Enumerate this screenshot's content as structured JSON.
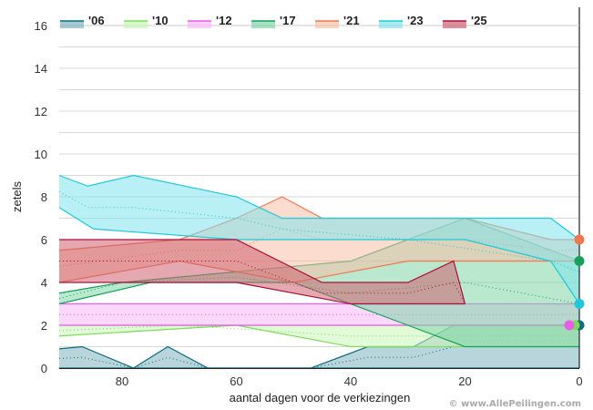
{
  "chart_data": {
    "type": "area",
    "title": "",
    "xlabel": "aantal dagen voor de verkiezingen",
    "ylabel": "zetels",
    "xlim": [
      91,
      0
    ],
    "ylim": [
      0,
      16.5
    ],
    "x_ticks": [
      80,
      60,
      40,
      20,
      0
    ],
    "y_ticks": [
      0,
      2,
      4,
      6,
      8,
      10,
      12,
      14,
      16
    ],
    "grid": true,
    "legend_position": "top",
    "watermark": "© www.AllePeilingen.com",
    "series": [
      {
        "name": "'06",
        "color": "#0d6b7d",
        "fill": "#7fb3c0",
        "low": [
          [
            91,
            0
          ],
          [
            0,
            0
          ]
        ],
        "high": [
          [
            91,
            0.9
          ],
          [
            87,
            1
          ],
          [
            78,
            0
          ],
          [
            72,
            1
          ],
          [
            65,
            0
          ],
          [
            47,
            0
          ],
          [
            37,
            1
          ],
          [
            29,
            1
          ],
          [
            22,
            2
          ],
          [
            0,
            2
          ]
        ],
        "end": 2
      },
      {
        "name": "'10",
        "color": "#7ddc5a",
        "fill": "#c8f5b8",
        "low": [
          [
            91,
            1.5
          ],
          [
            60,
            2
          ],
          [
            40,
            1
          ],
          [
            20,
            1
          ],
          [
            0,
            1
          ]
        ],
        "high": [
          [
            91,
            2
          ],
          [
            70,
            2
          ],
          [
            40,
            2
          ],
          [
            20,
            2
          ],
          [
            0,
            2
          ]
        ],
        "end": 2
      },
      {
        "name": "'12",
        "color": "#e85ee8",
        "fill": "#f8b8f8",
        "low": [
          [
            91,
            2
          ],
          [
            30,
            2
          ],
          [
            20,
            2
          ],
          [
            10,
            2
          ],
          [
            0,
            2
          ]
        ],
        "high": [
          [
            91,
            3
          ],
          [
            40,
            3
          ],
          [
            20,
            3
          ],
          [
            0,
            3
          ]
        ],
        "end": 2
      },
      {
        "name": "'17",
        "color": "#16a05a",
        "fill": "#7fd6a8",
        "low": [
          [
            91,
            3
          ],
          [
            75,
            4
          ],
          [
            50,
            4
          ],
          [
            30,
            2
          ],
          [
            20,
            1
          ],
          [
            0,
            1
          ]
        ],
        "high": [
          [
            91,
            3.5
          ],
          [
            80,
            4
          ],
          [
            60,
            4.5
          ],
          [
            40,
            5
          ],
          [
            20,
            7
          ],
          [
            10,
            6
          ],
          [
            0,
            5
          ]
        ],
        "end": 5
      },
      {
        "name": "'21",
        "color": "#f07850",
        "fill": "#f8c0a8",
        "low": [
          [
            91,
            4
          ],
          [
            70,
            5
          ],
          [
            50,
            4
          ],
          [
            30,
            5
          ],
          [
            10,
            5
          ],
          [
            0,
            5
          ]
        ],
        "high": [
          [
            91,
            5.5
          ],
          [
            70,
            6
          ],
          [
            60,
            7
          ],
          [
            52,
            8
          ],
          [
            45,
            7
          ],
          [
            20,
            7
          ],
          [
            5,
            6
          ],
          [
            0,
            6
          ]
        ],
        "end": 6
      },
      {
        "name": "'23",
        "color": "#20c8d8",
        "fill": "#80e4ec",
        "low": [
          [
            91,
            7.5
          ],
          [
            85,
            6.5
          ],
          [
            60,
            6
          ],
          [
            40,
            6
          ],
          [
            20,
            6
          ],
          [
            5,
            5
          ],
          [
            0,
            3
          ]
        ],
        "high": [
          [
            91,
            9
          ],
          [
            86,
            8.5
          ],
          [
            78,
            9
          ],
          [
            60,
            8
          ],
          [
            52,
            7
          ],
          [
            30,
            7
          ],
          [
            5,
            7
          ],
          [
            0,
            6
          ]
        ],
        "end": 3
      },
      {
        "name": "'25",
        "color": "#a8103c",
        "fill": "#d06070",
        "low": [
          [
            91,
            4
          ],
          [
            60,
            4
          ],
          [
            40,
            3
          ],
          [
            20,
            3
          ]
        ],
        "high": [
          [
            91,
            6
          ],
          [
            60,
            6
          ],
          [
            45,
            4
          ],
          [
            30,
            4
          ],
          [
            22,
            5
          ],
          [
            20,
            3
          ]
        ],
        "end": null
      }
    ]
  }
}
